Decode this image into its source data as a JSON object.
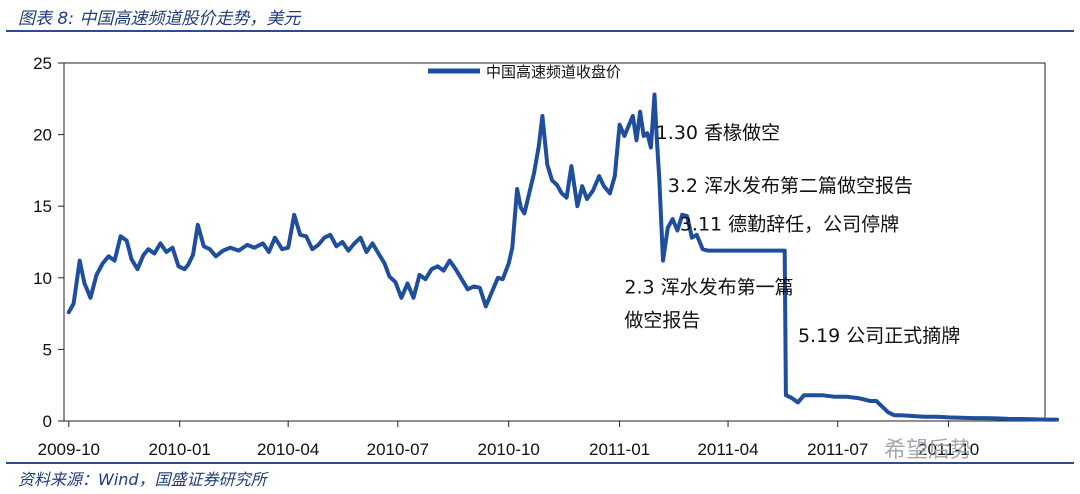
{
  "header": {
    "title": "图表 8:  中国高速频道股价走势，美元"
  },
  "footer": {
    "source": "资料来源：Wind，国盛证券研究所"
  },
  "watermark": {
    "text": "希望后势"
  },
  "chart_data": {
    "type": "line",
    "title": "",
    "xlabel": "",
    "ylabel": "",
    "ylim": [
      0,
      25
    ],
    "yticks": [
      0,
      5,
      10,
      15,
      20,
      25
    ],
    "xticks": [
      "2009-10",
      "2010-01",
      "2010-04",
      "2010-07",
      "2010-10",
      "2011-01",
      "2011-04",
      "2011-07",
      "2011-10"
    ],
    "legend": {
      "position": "top-center"
    },
    "color": "#1f4e9c",
    "series": [
      {
        "name": "中国高速频道收盘价",
        "x": [
          "2009-10-01",
          "2009-10-05",
          "2009-10-10",
          "2009-10-14",
          "2009-10-19",
          "2009-10-24",
          "2009-10-29",
          "2009-11-03",
          "2009-11-08",
          "2009-11-13",
          "2009-11-18",
          "2009-11-22",
          "2009-11-27",
          "2009-12-02",
          "2009-12-06",
          "2009-12-11",
          "2009-12-16",
          "2009-12-21",
          "2009-12-26",
          "2009-12-31",
          "2010-01-05",
          "2010-01-08",
          "2010-01-12",
          "2010-01-16",
          "2010-01-21",
          "2010-01-26",
          "2010-01-31",
          "2010-02-06",
          "2010-02-12",
          "2010-02-19",
          "2010-02-26",
          "2010-03-04",
          "2010-03-11",
          "2010-03-16",
          "2010-03-21",
          "2010-03-27",
          "2010-04-01",
          "2010-04-06",
          "2010-04-11",
          "2010-04-16",
          "2010-04-21",
          "2010-04-26",
          "2010-05-01",
          "2010-05-06",
          "2010-05-11",
          "2010-05-16",
          "2010-05-21",
          "2010-05-26",
          "2010-05-31",
          "2010-06-05",
          "2010-06-10",
          "2010-06-15",
          "2010-06-20",
          "2010-06-24",
          "2010-06-29",
          "2010-07-04",
          "2010-07-09",
          "2010-07-14",
          "2010-07-19",
          "2010-07-24",
          "2010-07-29",
          "2010-08-03",
          "2010-08-08",
          "2010-08-13",
          "2010-08-18",
          "2010-08-23",
          "2010-08-28",
          "2010-09-02",
          "2010-09-07",
          "2010-09-12",
          "2010-09-17",
          "2010-09-22",
          "2010-09-26",
          "2010-10-01",
          "2010-10-04",
          "2010-10-08",
          "2010-10-11",
          "2010-10-14",
          "2010-10-18",
          "2010-10-22",
          "2010-10-26",
          "2010-10-29",
          "2010-11-02",
          "2010-11-06",
          "2010-11-10",
          "2010-11-14",
          "2010-11-18",
          "2010-11-22",
          "2010-11-27",
          "2010-12-01",
          "2010-12-05",
          "2010-12-10",
          "2010-12-15",
          "2010-12-19",
          "2010-12-24",
          "2010-12-28",
          "2011-01-01",
          "2011-01-05",
          "2011-01-08",
          "2011-01-12",
          "2011-01-15",
          "2011-01-18",
          "2011-01-21",
          "2011-01-24",
          "2011-01-27",
          "2011-01-30",
          "2011-02-01",
          "2011-02-03",
          "2011-02-06",
          "2011-02-10",
          "2011-02-14",
          "2011-02-18",
          "2011-02-22",
          "2011-02-26",
          "2011-03-02",
          "2011-03-06",
          "2011-03-11",
          "2011-03-15",
          "2011-03-25",
          "2011-04-10",
          "2011-04-25",
          "2011-05-10",
          "2011-05-18",
          "2011-05-19",
          "2011-05-24",
          "2011-05-29",
          "2011-06-03",
          "2011-06-08",
          "2011-06-18",
          "2011-06-28",
          "2011-07-08",
          "2011-07-18",
          "2011-07-28",
          "2011-08-02",
          "2011-08-07",
          "2011-08-12",
          "2011-08-17",
          "2011-08-22",
          "2011-09-01",
          "2011-09-11",
          "2011-09-21",
          "2011-10-01",
          "2011-10-11",
          "2011-10-21",
          "2011-10-31",
          "2011-11-10",
          "2011-11-20",
          "2011-11-30",
          "2011-12-10",
          "2011-12-20",
          "2011-12-30"
        ],
        "values": [
          7.6,
          8.2,
          11.2,
          9.6,
          8.6,
          10.2,
          11.0,
          11.5,
          11.2,
          12.9,
          12.6,
          11.3,
          10.6,
          11.6,
          12.0,
          11.7,
          12.4,
          11.8,
          12.1,
          10.8,
          10.6,
          10.9,
          11.6,
          13.7,
          12.2,
          12.0,
          11.5,
          11.9,
          12.1,
          11.9,
          12.3,
          12.1,
          12.4,
          11.8,
          12.8,
          12.0,
          12.1,
          14.4,
          13.0,
          12.9,
          12.0,
          12.3,
          12.8,
          13.0,
          12.2,
          12.5,
          11.9,
          12.4,
          12.8,
          11.8,
          12.4,
          11.7,
          11.0,
          10.1,
          9.7,
          8.6,
          9.6,
          8.6,
          10.2,
          9.9,
          10.6,
          10.8,
          10.5,
          11.2,
          10.6,
          9.9,
          9.2,
          9.4,
          9.3,
          8.0,
          9.0,
          10.0,
          9.9,
          11.0,
          12.1,
          16.2,
          14.9,
          14.5,
          15.9,
          17.3,
          19.2,
          21.3,
          17.9,
          16.8,
          16.5,
          15.9,
          15.6,
          17.8,
          15.0,
          16.4,
          15.5,
          16.1,
          17.1,
          16.4,
          15.9,
          17.1,
          20.7,
          19.9,
          20.5,
          21.3,
          19.6,
          21.6,
          19.9,
          20.1,
          19.1,
          22.8,
          19.6,
          16.9,
          11.2,
          13.5,
          14.1,
          13.3,
          14.4,
          14.3,
          12.8,
          13.0,
          12.0,
          11.9,
          11.9,
          11.9,
          11.9,
          11.9,
          11.9,
          1.8,
          1.6,
          1.3,
          1.8,
          1.8,
          1.8,
          1.7,
          1.7,
          1.6,
          1.4,
          1.4,
          1.0,
          0.6,
          0.4,
          0.4,
          0.35,
          0.3,
          0.3,
          0.25,
          0.22,
          0.2,
          0.2,
          0.18,
          0.15,
          0.14,
          0.12,
          0.1,
          0.1
        ]
      }
    ],
    "annotations": [
      {
        "text": "1.30 香椽做空",
        "x": "2011-01-31",
        "y": 19.7
      },
      {
        "text": "3.2 浑水发布第二篇做空报告",
        "x": "2011-02-10",
        "y": 16.0
      },
      {
        "text": "3.11 德勤辞任，公司停牌",
        "x": "2011-02-20",
        "y": 13.3
      },
      {
        "text": "2.3 浑水发布第一篇",
        "x": "2011-01-05",
        "y": 8.9
      },
      {
        "text": "做空报告",
        "x": "2011-01-05",
        "y": 6.6
      },
      {
        "text": "5.19 公司正式摘牌",
        "x": "2011-05-29",
        "y": 5.5
      }
    ]
  }
}
